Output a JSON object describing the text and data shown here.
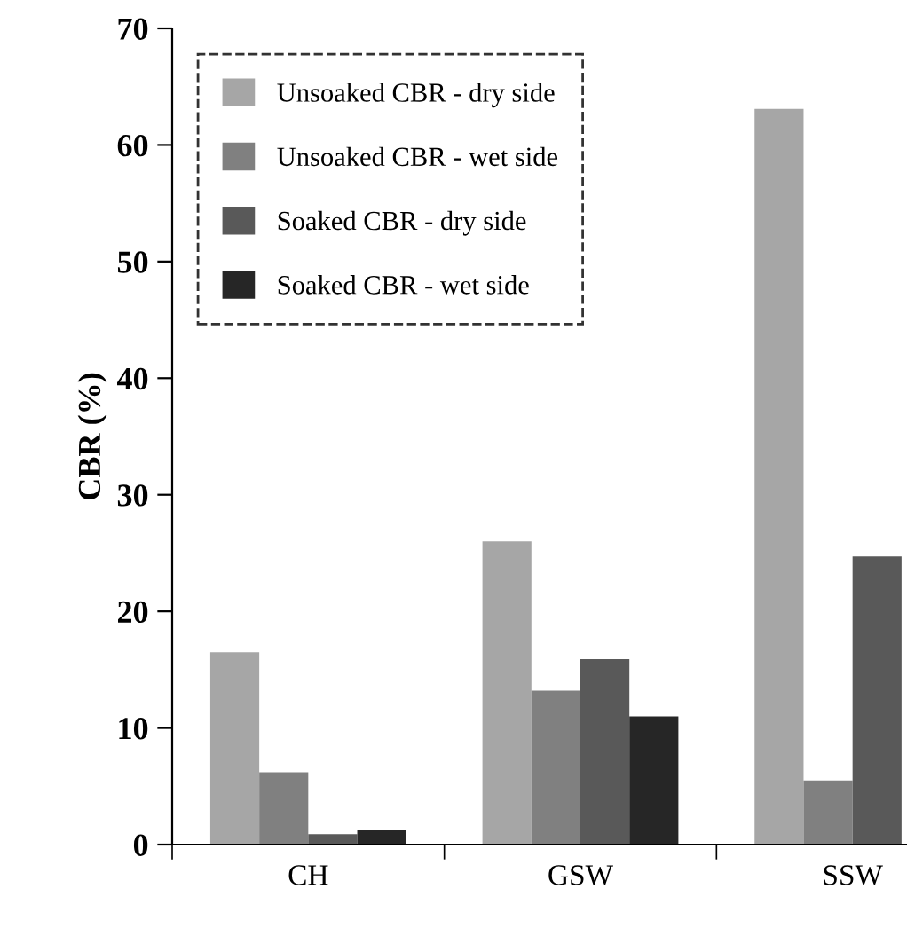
{
  "chart_data": {
    "type": "bar",
    "ylabel": "CBR (%)",
    "categories": [
      "CH",
      "GSW",
      "SSW"
    ],
    "series": [
      {
        "name": "Unsoaked CBR - dry side",
        "color": "#a6a6a6",
        "values": [
          16.5,
          26,
          63.1
        ]
      },
      {
        "name": "Unsoaked CBR - wet side",
        "color": "#808080",
        "values": [
          6.2,
          13.2,
          5.5
        ]
      },
      {
        "name": "Soaked CBR - dry side",
        "color": "#595959",
        "values": [
          0.9,
          15.9,
          24.7
        ]
      },
      {
        "name": "Soaked CBR - wet side",
        "color": "#262626",
        "values": [
          1.3,
          11,
          null
        ]
      }
    ],
    "ylim": [
      0,
      70
    ],
    "yticks": [
      0,
      10,
      20,
      30,
      40,
      50,
      60,
      70
    ],
    "grid": false,
    "legend": "top left"
  }
}
